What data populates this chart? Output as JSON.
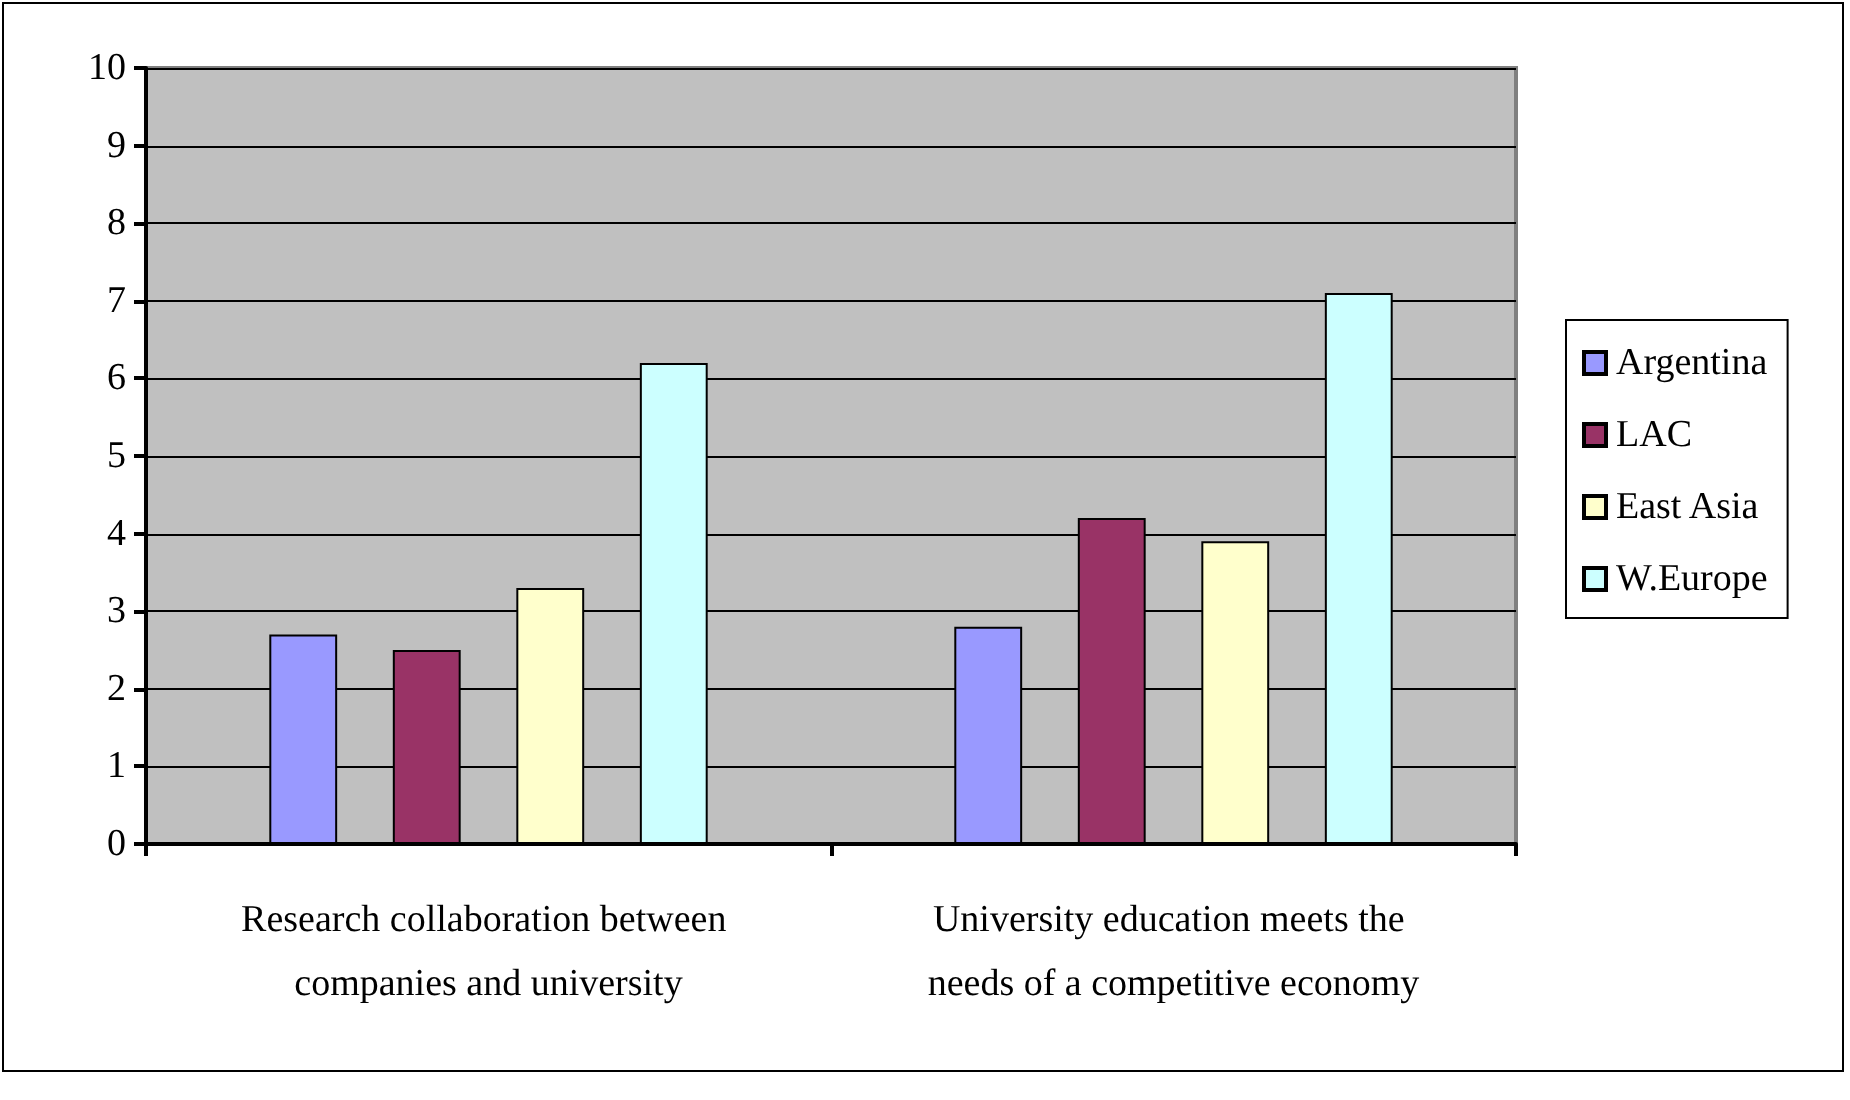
{
  "chart_data": {
    "type": "bar",
    "categories": [
      "Research collaboration between companies and university",
      "University education meets the needs of a competitive economy"
    ],
    "series": [
      {
        "name": "Argentina",
        "color": "#9999ff",
        "values": [
          2.7,
          2.8
        ]
      },
      {
        "name": "LAC",
        "color": "#993366",
        "values": [
          2.5,
          4.2
        ]
      },
      {
        "name": "East Asia",
        "color": "#ffffcc",
        "values": [
          3.3,
          3.9
        ]
      },
      {
        "name": "W.Europe",
        "color": "#ccffff",
        "values": [
          6.2,
          7.1
        ]
      }
    ],
    "ylim": [
      0,
      10
    ],
    "yticks": [
      0,
      1,
      2,
      3,
      4,
      5,
      6,
      7,
      8,
      9,
      10
    ],
    "grid": "y",
    "legend": "right"
  }
}
